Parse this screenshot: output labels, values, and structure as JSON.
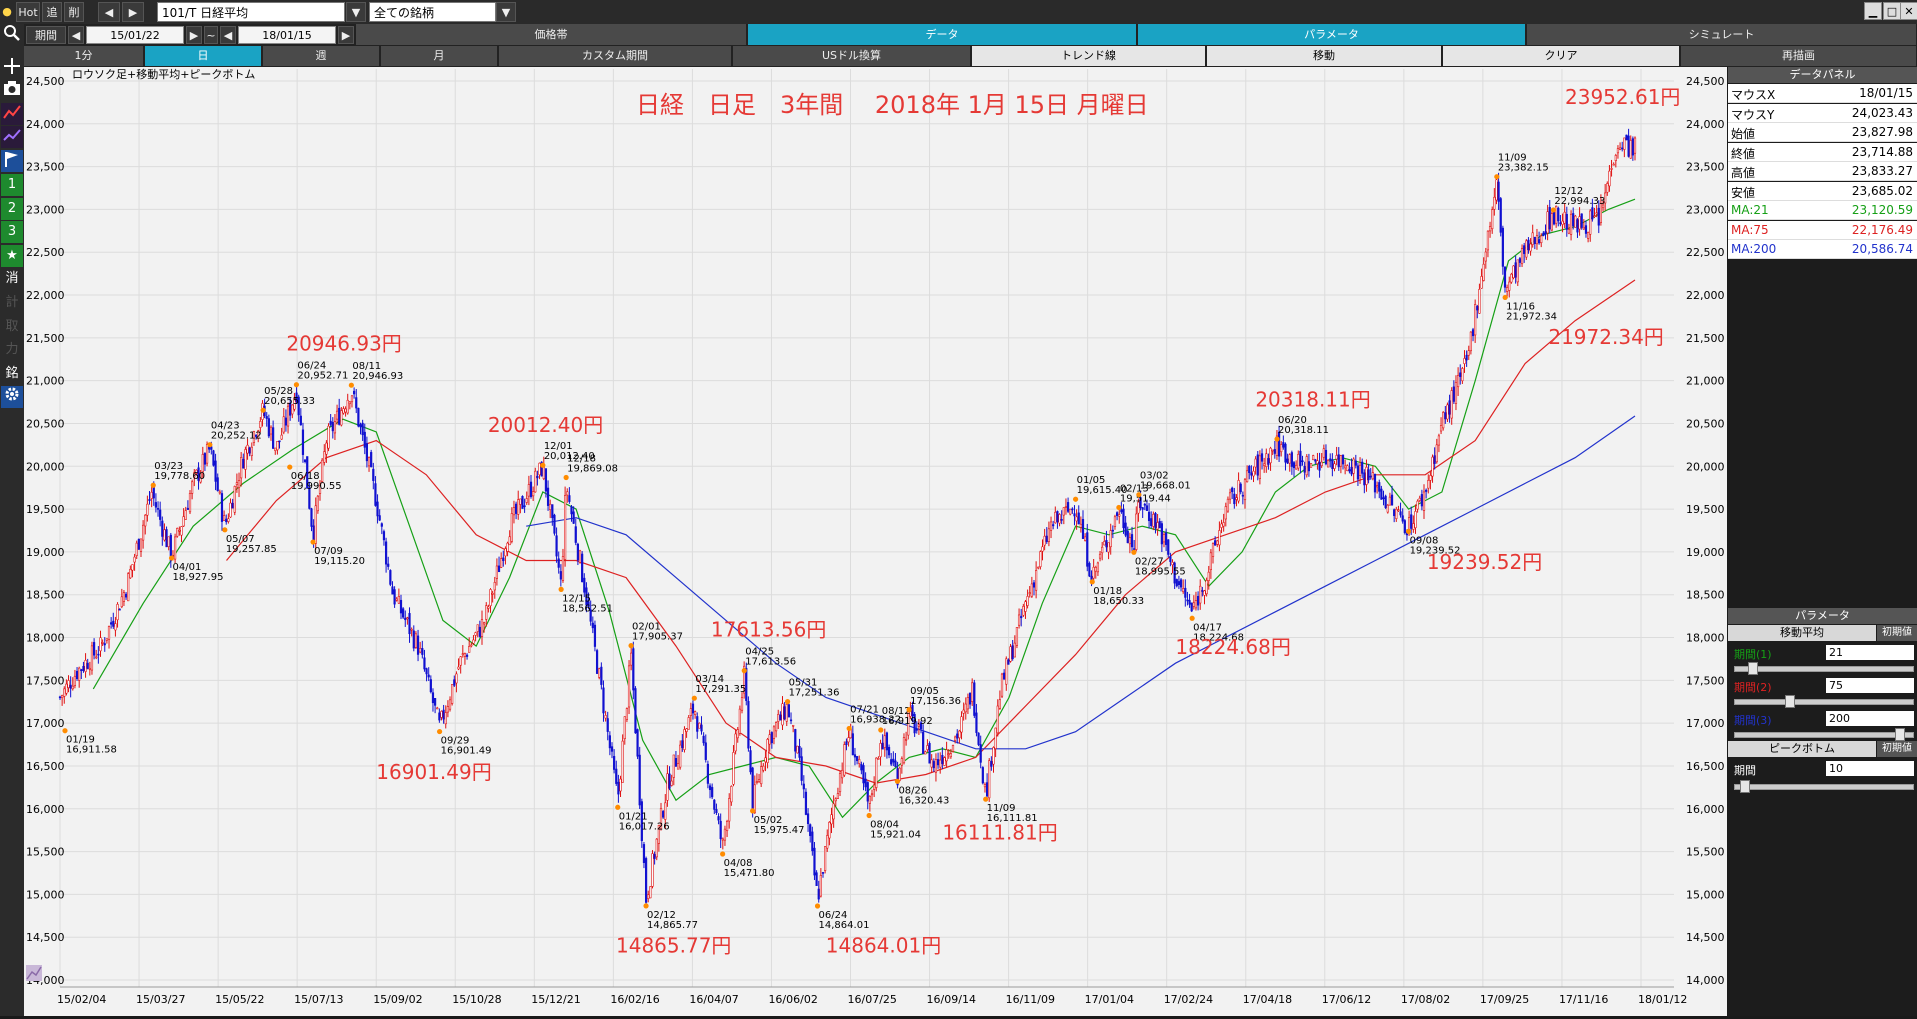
{
  "topbar": {
    "hot_label": "Hot",
    "add_label": "追",
    "delete_label": "削",
    "symbol": "101/T 日経平均",
    "filter": "全ての銘柄"
  },
  "window": {
    "minimize": "▁",
    "maximize": "□",
    "close": "✕"
  },
  "period_bar": {
    "period_label": "期間",
    "start_date": "15/01/22",
    "tilde": "~",
    "end_date": "18/01/15"
  },
  "main_tabs": [
    {
      "label": "価格帯",
      "active": false
    },
    {
      "label": "データ",
      "active": true
    },
    {
      "label": "パラメータ",
      "active": true
    },
    {
      "label": "シミュレート",
      "active": false
    }
  ],
  "period_tabs": [
    {
      "label": "1分",
      "active": false
    },
    {
      "label": "日",
      "active": true
    },
    {
      "label": "週",
      "active": false
    },
    {
      "label": "月",
      "active": false
    },
    {
      "label": "カスタム期間",
      "active": false
    },
    {
      "label": "USドル換算",
      "active": false
    },
    {
      "label": "トレンド線",
      "active": false
    },
    {
      "label": "移動",
      "active": false
    },
    {
      "label": "クリア",
      "active": false
    },
    {
      "label": "再描画",
      "active": false
    }
  ],
  "left_tools": [
    "search-icon",
    "crosshair-icon",
    "camera-icon",
    "chart-red-icon",
    "chart-purple-icon",
    "flag-icon",
    "1",
    "2",
    "3",
    "star-icon",
    "消",
    "計",
    "取",
    "力",
    "銘",
    "gear-icon"
  ],
  "data_panel": {
    "title": "データパネル",
    "rows": [
      {
        "k": "マウスX",
        "v": "18/01/15",
        "color": "#000000"
      },
      {
        "k": "マウスY",
        "v": "24,023.43",
        "color": "#000000"
      },
      {
        "k": "始値",
        "v": "23,827.98",
        "color": "#000000"
      },
      {
        "k": "終値",
        "v": "23,714.88",
        "color": "#000000"
      },
      {
        "k": "高値",
        "v": "23,833.27",
        "color": "#000000"
      },
      {
        "k": "安値",
        "v": "23,685.02",
        "color": "#000000"
      },
      {
        "k": "MA:21",
        "v": "23,120.59",
        "color": "#16a016"
      },
      {
        "k": "MA:75",
        "v": "22,176.49",
        "color": "#dd2222"
      },
      {
        "k": "MA:200",
        "v": "20,586.74",
        "color": "#2233cc"
      }
    ]
  },
  "param_panel": {
    "title": "パラメータ",
    "ma_title": "移動平均",
    "reset_label": "初期値",
    "ma_rows": [
      {
        "label": "期間(1)",
        "value": "21",
        "color": "#16a016",
        "pos": 0.08
      },
      {
        "label": "期間(2)",
        "value": "75",
        "color": "#dd2222",
        "pos": 0.3
      },
      {
        "label": "期間(3)",
        "value": "200",
        "color": "#2233cc",
        "pos": 0.95
      }
    ],
    "peak_title": "ピークボトム",
    "peak_reset_label": "初期値",
    "peak_row": {
      "label": "期間",
      "value": "10",
      "pos": 0.03
    }
  },
  "chart_data": {
    "type": "candlestick",
    "legend": "ロウソク足+移動平均+ピークボトム",
    "title": "日経　日足　3年間　 2018年 1月 15日 月曜日",
    "ylim": [
      14000,
      24500
    ],
    "yticks": [
      "24,500",
      "24,000",
      "23,500",
      "23,000",
      "22,500",
      "22,000",
      "21,500",
      "21,000",
      "20,500",
      "20,000",
      "19,500",
      "19,000",
      "18,500",
      "18,000",
      "17,500",
      "17,000",
      "16,500",
      "16,000",
      "15,500",
      "15,000",
      "14,500",
      "14,000"
    ],
    "xticks": [
      "15/02/04",
      "15/03/27",
      "15/05/22",
      "15/07/13",
      "15/09/02",
      "15/10/28",
      "15/12/21",
      "16/02/16",
      "16/04/07",
      "16/06/02",
      "16/07/25",
      "16/09/14",
      "16/11/09",
      "17/01/04",
      "17/02/24",
      "17/04/18",
      "17/06/12",
      "17/08/02",
      "17/09/25",
      "17/11/16",
      "18/01/12"
    ],
    "x_range": [
      0,
      1
    ],
    "series_ma": [
      {
        "name": "MA:21",
        "color": "#16a016"
      },
      {
        "name": "MA:75",
        "color": "#dd2222"
      },
      {
        "name": "MA:200",
        "color": "#2233cc"
      }
    ],
    "peaks": [
      {
        "date": "01/19",
        "value": "16,911.58",
        "t": 0.003,
        "price": 16911.58,
        "type": "bottom"
      },
      {
        "date": "03/23",
        "value": "19,778.60",
        "t": 0.056,
        "price": 19778.6,
        "type": "peak"
      },
      {
        "date": "04/01",
        "value": "18,927.95",
        "t": 0.067,
        "price": 18927.95,
        "type": "bottom"
      },
      {
        "date": "04/23",
        "value": "20,252.12",
        "t": 0.09,
        "price": 20252.12,
        "type": "peak"
      },
      {
        "date": "05/07",
        "value": "19,257.85",
        "t": 0.099,
        "price": 19257.85,
        "type": "bottom"
      },
      {
        "date": "05/28",
        "value": "20,655.33",
        "t": 0.122,
        "price": 20655.33,
        "type": "peak"
      },
      {
        "date": "06/24",
        "value": "20,952.71",
        "t": 0.142,
        "price": 20952.71,
        "type": "peak"
      },
      {
        "date": "06/18",
        "value": "19,990.55",
        "t": 0.138,
        "price": 19990.55,
        "type": "bottom"
      },
      {
        "date": "07/09",
        "value": "19,115.20",
        "t": 0.152,
        "price": 19115.2,
        "type": "bottom"
      },
      {
        "date": "08/11",
        "value": "20,946.93",
        "t": 0.175,
        "price": 20946.93,
        "type": "peak"
      },
      {
        "date": "09/29",
        "value": "16,901.49",
        "t": 0.228,
        "price": 16901.49,
        "type": "bottom"
      },
      {
        "date": "12/01",
        "value": "20,012.40",
        "t": 0.29,
        "price": 20012.4,
        "type": "peak"
      },
      {
        "date": "12/18",
        "value": "19,869.08",
        "t": 0.304,
        "price": 19869.08,
        "type": "peak"
      },
      {
        "date": "12/15",
        "value": "18,562.51",
        "t": 0.301,
        "price": 18562.51,
        "type": "bottom"
      },
      {
        "date": "01/21",
        "value": "16,017.26",
        "t": 0.335,
        "price": 16017.26,
        "type": "bottom"
      },
      {
        "date": "02/01",
        "value": "17,905.37",
        "t": 0.343,
        "price": 17905.37,
        "type": "peak"
      },
      {
        "date": "02/12",
        "value": "14,865.77",
        "t": 0.352,
        "price": 14865.77,
        "type": "bottom"
      },
      {
        "date": "03/14",
        "value": "17,291.35",
        "t": 0.381,
        "price": 17291.35,
        "type": "peak"
      },
      {
        "date": "04/08",
        "value": "15,471.80",
        "t": 0.398,
        "price": 15471.8,
        "type": "bottom"
      },
      {
        "date": "04/25",
        "value": "17,613.56",
        "t": 0.411,
        "price": 17613.56,
        "type": "peak"
      },
      {
        "date": "05/02",
        "value": "15,975.47",
        "t": 0.416,
        "price": 15975.47,
        "type": "bottom"
      },
      {
        "date": "05/31",
        "value": "17,251.36",
        "t": 0.437,
        "price": 17251.36,
        "type": "peak"
      },
      {
        "date": "06/24",
        "value": "14,864.01",
        "t": 0.455,
        "price": 14864.01,
        "type": "bottom"
      },
      {
        "date": "07/21",
        "value": "16,938.22",
        "t": 0.474,
        "price": 16938.22,
        "type": "peak"
      },
      {
        "date": "08/04",
        "value": "15,921.04",
        "t": 0.486,
        "price": 15921.04,
        "type": "bottom"
      },
      {
        "date": "08/12",
        "value": "16,919.92",
        "t": 0.493,
        "price": 16919.92,
        "type": "peak"
      },
      {
        "date": "08/26",
        "value": "16,320.43",
        "t": 0.503,
        "price": 16320.43,
        "type": "bottom"
      },
      {
        "date": "09/05",
        "value": "17,156.36",
        "t": 0.51,
        "price": 17156.36,
        "type": "peak"
      },
      {
        "date": "11/09",
        "value": "16,111.81",
        "t": 0.556,
        "price": 16111.81,
        "type": "bottom"
      },
      {
        "date": "01/05",
        "value": "19,615.40",
        "t": 0.61,
        "price": 19615.4,
        "type": "peak"
      },
      {
        "date": "01/18",
        "value": "18,650.33",
        "t": 0.62,
        "price": 18650.33,
        "type": "bottom"
      },
      {
        "date": "02/13",
        "value": "19,519.44",
        "t": 0.636,
        "price": 19519.44,
        "type": "peak"
      },
      {
        "date": "03/02",
        "value": "19,668.01",
        "t": 0.648,
        "price": 19668.01,
        "type": "peak"
      },
      {
        "date": "02/27",
        "value": "18,995.55",
        "t": 0.645,
        "price": 18995.55,
        "type": "bottom"
      },
      {
        "date": "04/17",
        "value": "18,224.68",
        "t": 0.68,
        "price": 18224.68,
        "type": "bottom"
      },
      {
        "date": "06/20",
        "value": "20,318.11",
        "t": 0.731,
        "price": 20318.11,
        "type": "peak"
      },
      {
        "date": "09/08",
        "value": "19,239.52",
        "t": 0.81,
        "price": 19239.52,
        "type": "bottom"
      },
      {
        "date": "11/09",
        "value": "23,382.15",
        "t": 0.863,
        "price": 23382.15,
        "type": "peak"
      },
      {
        "date": "11/16",
        "value": "21,972.34",
        "t": 0.868,
        "price": 21972.34,
        "type": "bottom"
      },
      {
        "date": "12/12",
        "value": "22,994.33",
        "t": 0.897,
        "price": 22994.33,
        "type": "peak"
      }
    ],
    "annotations": [
      {
        "text": "20946.93円",
        "t": 0.172,
        "price": 21350
      },
      {
        "text": "20012.40円",
        "t": 0.293,
        "price": 20400
      },
      {
        "text": "16901.49円",
        "t": 0.226,
        "price": 16350
      },
      {
        "text": "14865.77円",
        "t": 0.37,
        "price": 14320
      },
      {
        "text": "17613.56円",
        "t": 0.427,
        "price": 18010
      },
      {
        "text": "14864.01円",
        "t": 0.496,
        "price": 14320
      },
      {
        "text": "16111.81円",
        "t": 0.566,
        "price": 15640
      },
      {
        "text": "18224.68円",
        "t": 0.706,
        "price": 17810
      },
      {
        "text": "20318.11円",
        "t": 0.754,
        "price": 20700
      },
      {
        "text": "19239.52円",
        "t": 0.857,
        "price": 18800
      },
      {
        "text": "21972.34円",
        "t": 0.93,
        "price": 21430
      },
      {
        "text": "23952.61円",
        "t": 0.94,
        "price": 24230
      }
    ],
    "ma21": [
      [
        0.02,
        17400
      ],
      [
        0.05,
        18400
      ],
      [
        0.08,
        19300
      ],
      [
        0.11,
        19800
      ],
      [
        0.14,
        20200
      ],
      [
        0.17,
        20550
      ],
      [
        0.19,
        20400
      ],
      [
        0.21,
        19300
      ],
      [
        0.23,
        18200
      ],
      [
        0.25,
        17900
      ],
      [
        0.27,
        18700
      ],
      [
        0.29,
        19700
      ],
      [
        0.31,
        19500
      ],
      [
        0.33,
        18300
      ],
      [
        0.35,
        16800
      ],
      [
        0.37,
        16100
      ],
      [
        0.39,
        16400
      ],
      [
        0.41,
        16500
      ],
      [
        0.43,
        16600
      ],
      [
        0.45,
        16500
      ],
      [
        0.47,
        15900
      ],
      [
        0.49,
        16300
      ],
      [
        0.51,
        16600
      ],
      [
        0.53,
        16700
      ],
      [
        0.55,
        16600
      ],
      [
        0.57,
        17300
      ],
      [
        0.59,
        18400
      ],
      [
        0.61,
        19300
      ],
      [
        0.63,
        19200
      ],
      [
        0.65,
        19300
      ],
      [
        0.67,
        19200
      ],
      [
        0.69,
        18600
      ],
      [
        0.71,
        19000
      ],
      [
        0.73,
        19700
      ],
      [
        0.75,
        20000
      ],
      [
        0.77,
        20100
      ],
      [
        0.79,
        20000
      ],
      [
        0.81,
        19500
      ],
      [
        0.83,
        19700
      ],
      [
        0.85,
        21000
      ],
      [
        0.87,
        22400
      ],
      [
        0.89,
        22700
      ],
      [
        0.91,
        22800
      ],
      [
        0.93,
        23000
      ],
      [
        0.946,
        23120
      ]
    ],
    "ma75": [
      [
        0.1,
        18900
      ],
      [
        0.13,
        19600
      ],
      [
        0.16,
        20100
      ],
      [
        0.19,
        20300
      ],
      [
        0.22,
        19900
      ],
      [
        0.25,
        19200
      ],
      [
        0.28,
        18900
      ],
      [
        0.31,
        18900
      ],
      [
        0.34,
        18700
      ],
      [
        0.37,
        17900
      ],
      [
        0.4,
        17000
      ],
      [
        0.43,
        16600
      ],
      [
        0.46,
        16500
      ],
      [
        0.49,
        16300
      ],
      [
        0.52,
        16400
      ],
      [
        0.55,
        16600
      ],
      [
        0.58,
        17200
      ],
      [
        0.61,
        17800
      ],
      [
        0.64,
        18500
      ],
      [
        0.67,
        19000
      ],
      [
        0.7,
        19200
      ],
      [
        0.73,
        19400
      ],
      [
        0.76,
        19700
      ],
      [
        0.79,
        19900
      ],
      [
        0.82,
        19900
      ],
      [
        0.85,
        20300
      ],
      [
        0.88,
        21200
      ],
      [
        0.91,
        21700
      ],
      [
        0.946,
        22176
      ]
    ],
    "ma200": [
      [
        0.28,
        19300
      ],
      [
        0.31,
        19400
      ],
      [
        0.34,
        19200
      ],
      [
        0.37,
        18700
      ],
      [
        0.4,
        18200
      ],
      [
        0.43,
        17700
      ],
      [
        0.46,
        17300
      ],
      [
        0.49,
        17100
      ],
      [
        0.52,
        16900
      ],
      [
        0.55,
        16700
      ],
      [
        0.58,
        16700
      ],
      [
        0.61,
        16900
      ],
      [
        0.64,
        17300
      ],
      [
        0.67,
        17700
      ],
      [
        0.7,
        18000
      ],
      [
        0.73,
        18300
      ],
      [
        0.76,
        18600
      ],
      [
        0.79,
        18900
      ],
      [
        0.82,
        19200
      ],
      [
        0.85,
        19500
      ],
      [
        0.88,
        19800
      ],
      [
        0.91,
        20100
      ],
      [
        0.946,
        20587
      ]
    ],
    "price_path": [
      [
        0.0,
        17300
      ],
      [
        0.01,
        17600
      ],
      [
        0.025,
        17900
      ],
      [
        0.04,
        18600
      ],
      [
        0.055,
        19700
      ],
      [
        0.067,
        18950
      ],
      [
        0.08,
        19800
      ],
      [
        0.09,
        20200
      ],
      [
        0.099,
        19300
      ],
      [
        0.11,
        20100
      ],
      [
        0.122,
        20650
      ],
      [
        0.13,
        20200
      ],
      [
        0.142,
        20900
      ],
      [
        0.152,
        19200
      ],
      [
        0.16,
        20300
      ],
      [
        0.175,
        20900
      ],
      [
        0.19,
        19600
      ],
      [
        0.2,
        18500
      ],
      [
        0.215,
        17900
      ],
      [
        0.228,
        16950
      ],
      [
        0.24,
        17700
      ],
      [
        0.255,
        18200
      ],
      [
        0.27,
        19300
      ],
      [
        0.29,
        20000
      ],
      [
        0.301,
        18600
      ],
      [
        0.304,
        19800
      ],
      [
        0.315,
        18600
      ],
      [
        0.325,
        17400
      ],
      [
        0.335,
        16100
      ],
      [
        0.343,
        17800
      ],
      [
        0.352,
        14950
      ],
      [
        0.365,
        16300
      ],
      [
        0.381,
        17200
      ],
      [
        0.398,
        15550
      ],
      [
        0.411,
        17550
      ],
      [
        0.416,
        16050
      ],
      [
        0.425,
        16800
      ],
      [
        0.437,
        17200
      ],
      [
        0.445,
        16400
      ],
      [
        0.455,
        14950
      ],
      [
        0.465,
        16100
      ],
      [
        0.474,
        16900
      ],
      [
        0.486,
        16000
      ],
      [
        0.493,
        16850
      ],
      [
        0.503,
        16400
      ],
      [
        0.51,
        17100
      ],
      [
        0.525,
        16500
      ],
      [
        0.54,
        16900
      ],
      [
        0.548,
        17400
      ],
      [
        0.556,
        16150
      ],
      [
        0.565,
        17400
      ],
      [
        0.58,
        18400
      ],
      [
        0.595,
        19300
      ],
      [
        0.61,
        19550
      ],
      [
        0.62,
        18700
      ],
      [
        0.636,
        19500
      ],
      [
        0.645,
        19050
      ],
      [
        0.648,
        19600
      ],
      [
        0.66,
        19300
      ],
      [
        0.67,
        18700
      ],
      [
        0.68,
        18300
      ],
      [
        0.69,
        18800
      ],
      [
        0.7,
        19500
      ],
      [
        0.715,
        19900
      ],
      [
        0.731,
        20250
      ],
      [
        0.745,
        20000
      ],
      [
        0.76,
        20100
      ],
      [
        0.775,
        20050
      ],
      [
        0.79,
        19800
      ],
      [
        0.8,
        19500
      ],
      [
        0.81,
        19300
      ],
      [
        0.82,
        19700
      ],
      [
        0.83,
        20500
      ],
      [
        0.845,
        21200
      ],
      [
        0.855,
        22400
      ],
      [
        0.863,
        23300
      ],
      [
        0.868,
        22050
      ],
      [
        0.88,
        22500
      ],
      [
        0.897,
        22950
      ],
      [
        0.91,
        22800
      ],
      [
        0.925,
        22900
      ],
      [
        0.935,
        23800
      ],
      [
        0.946,
        23720
      ]
    ]
  }
}
